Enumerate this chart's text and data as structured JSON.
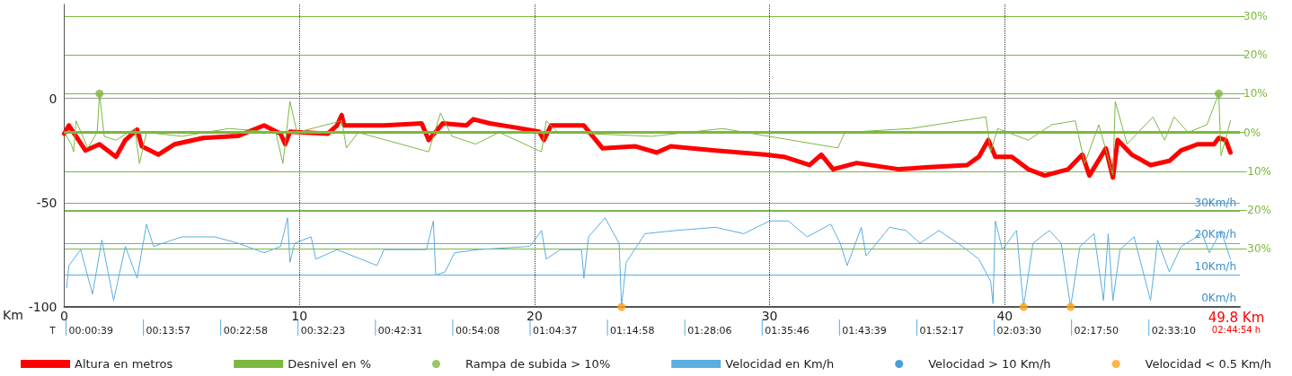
{
  "chart_data": {
    "type": "line",
    "xlabel": "Km",
    "xlim": [
      0,
      50
    ],
    "xticks": [
      0,
      10,
      20,
      30,
      40
    ],
    "ylim": [
      -100,
      45
    ],
    "yticks": [
      -100,
      -50,
      0
    ],
    "y2lim": [
      -45,
      33
    ],
    "y2ticks": [
      {
        "value": 30,
        "label": "30%"
      },
      {
        "value": 20,
        "label": "20%"
      },
      {
        "value": 10,
        "label": "10%"
      },
      {
        "value": 0,
        "label": "0%"
      },
      {
        "value": -10,
        "label": "-10%"
      },
      {
        "value": -20,
        "label": "-20%"
      },
      {
        "value": -30,
        "label": "-30%"
      }
    ],
    "y3lim": [
      0,
      95
    ],
    "y3ticks": [
      {
        "value": 0,
        "label": "0Km/h"
      },
      {
        "value": 10,
        "label": "10Km/h"
      },
      {
        "value": 20,
        "label": "20Km/h"
      },
      {
        "value": 30,
        "label": "30Km/h"
      }
    ],
    "grid": true,
    "legend": "bottom",
    "line_style": "solid",
    "ref_lines": [
      {
        "axis": "y2",
        "value": 0,
        "color": "#7cb83e"
      }
    ],
    "annotations": [
      "49.8 Km",
      "02:44:54 h",
      "T",
      "00:00:39",
      "00:13:57",
      "00:22:58",
      "00:32:23",
      "00:42:31",
      "00:54:08",
      "01:04:37",
      "01:14:58",
      "01:28:06",
      "01:35:46",
      "01:43:39",
      "01:52:17",
      "02:03:30",
      "02:17:50",
      "02:33:10"
    ],
    "series": [
      {
        "name": "Desnivel en %",
        "axis": "y2",
        "color": "#7cb83e",
        "x": [
          0,
          0.3,
          0.4,
          0.5,
          1.0,
          1.4,
          1.5,
          1.7,
          2.2,
          3.0,
          3.2,
          3.5,
          5,
          7,
          9.0,
          9.3,
          9.6,
          9.9,
          11.8,
          12.0,
          12.5,
          15.5,
          16.0,
          16.5,
          17.5,
          18.5,
          20.3,
          20.5,
          21,
          25,
          28,
          32.9,
          33.2,
          36,
          39.2,
          39.4,
          39.7,
          41,
          42,
          43.0,
          43.4,
          44.0,
          44.6,
          44.7,
          45.2,
          46.3,
          46.8,
          47.2,
          47.8,
          48.6,
          49.1,
          49.2,
          49.6
        ],
        "values": [
          0,
          -3,
          -5,
          3,
          -4,
          0,
          10,
          -1,
          -2,
          1,
          -8,
          0,
          -1,
          1,
          0,
          -8,
          8,
          0,
          3,
          -4,
          0,
          -5,
          5,
          -1,
          -3,
          0,
          -5,
          3,
          0,
          -1,
          1,
          -4,
          0,
          1,
          4,
          -5,
          1,
          -2,
          2,
          3,
          -8,
          2,
          -11,
          8,
          -3,
          4,
          -2,
          4,
          0,
          2,
          10,
          -6,
          3
        ]
      },
      {
        "name": "Altura en metros",
        "axis": "y",
        "color": "#ff0000",
        "x": [
          0,
          0.2,
          0.9,
          1.5,
          2.2,
          2.6,
          3.1,
          3.3,
          4.0,
          4.7,
          5.9,
          7.4,
          8.5,
          9.2,
          9.4,
          9.6,
          11.2,
          11.6,
          11.8,
          11.9,
          13.6,
          15.2,
          15.5,
          16.1,
          17.1,
          17.4,
          18.1,
          19.2,
          20.2,
          20.4,
          20.7,
          22.1,
          22.9,
          24.3,
          25.2,
          25.8,
          27.7,
          29.8,
          30.6,
          31.7,
          32.2,
          32.7,
          33.7,
          35.5,
          36.8,
          38.4,
          38.9,
          39.3,
          39.6,
          40.3,
          41.0,
          41.7,
          42.7,
          43.3,
          43.6,
          44.3,
          44.6,
          44.8,
          45.4,
          46.2,
          47.0,
          47.5,
          48.2,
          48.9,
          49.1,
          49.4,
          49.6
        ],
        "values": [
          -17,
          -13,
          -25,
          -22,
          -28,
          -20,
          -15,
          -23,
          -27,
          -22,
          -19,
          -18,
          -13,
          -17,
          -22,
          -16,
          -17,
          -13,
          -8,
          -13,
          -13,
          -12,
          -20,
          -12,
          -13,
          -10,
          -12,
          -14,
          -16,
          -20,
          -13,
          -13,
          -24,
          -23,
          -26,
          -23,
          -25,
          -27,
          -28,
          -32,
          -27,
          -34,
          -31,
          -34,
          -33,
          -32,
          -28,
          -20,
          -28,
          -28,
          -34,
          -37,
          -34,
          -27,
          -37,
          -24,
          -38,
          -20,
          -27,
          -32,
          -30,
          -25,
          -22,
          -22,
          -19,
          -20,
          -26
        ]
      },
      {
        "name": "Rampa de subida > 10%",
        "type": "scatter",
        "axis": "y2",
        "marker": "circle",
        "color": "#7cb83e",
        "x": [
          1.5,
          49.1
        ],
        "values": [
          10,
          10
        ]
      },
      {
        "name": "Velocidad en Km/h",
        "axis": "y3",
        "color": "#5aaee0",
        "x": [
          0.1,
          0.2,
          0.7,
          1.2,
          1.6,
          2.1,
          2.6,
          3.1,
          3.5,
          3.8,
          5.0,
          6.4,
          7.4,
          8.5,
          9.2,
          9.5,
          9.6,
          9.8,
          10.5,
          10.7,
          11.6,
          13.3,
          13.6,
          15.4,
          15.7,
          15.8,
          16.2,
          16.6,
          17.6,
          19.8,
          20.3,
          20.5,
          21.1,
          22.0,
          22.1,
          22.3,
          23.0,
          23.6,
          23.7,
          23.9,
          24.7,
          26.0,
          27.7,
          28.9,
          30.0,
          30.8,
          31.6,
          32.6,
          33.0,
          33.3,
          33.9,
          34.1,
          35.1,
          35.8,
          36.4,
          37.2,
          38.2,
          38.9,
          39.4,
          39.5,
          39.6,
          39.9,
          40.5,
          40.8,
          41.2,
          41.9,
          42.4,
          42.8,
          43.2,
          43.8,
          44.2,
          44.4,
          44.6,
          44.9,
          45.5,
          46.2,
          46.5,
          47.0,
          47.5,
          48.4,
          48.7,
          49.2,
          49.6
        ],
        "values": [
          6,
          13,
          18,
          4,
          21,
          2,
          19,
          9,
          26,
          19,
          22,
          22,
          20,
          17,
          19,
          28,
          14,
          20,
          22,
          15,
          18,
          13,
          18,
          18,
          27,
          10,
          11,
          17,
          18,
          19,
          24,
          15,
          18,
          18,
          9,
          22,
          28,
          20,
          0,
          14,
          23,
          24,
          25,
          23,
          27,
          27,
          22,
          26,
          20,
          13,
          25,
          16,
          25,
          24,
          20,
          24,
          19,
          15,
          8,
          1,
          27,
          18,
          24,
          0,
          20,
          24,
          20,
          0,
          19,
          23,
          2,
          23,
          2,
          18,
          22,
          2,
          21,
          11,
          19,
          23,
          17,
          24,
          15
        ]
      },
      {
        "name": "Velocidad > 10 Km/h",
        "type": "scatter",
        "axis": "y3",
        "marker": "circle",
        "color": "#1a86cc"
      },
      {
        "name": "Velocidad < 0.5 Km/h",
        "type": "scatter",
        "axis": "y3",
        "marker": "circle",
        "color": "#ffa31a",
        "x": [
          23.7,
          40.8,
          42.8
        ],
        "values": [
          0,
          0,
          0
        ]
      }
    ]
  }
}
